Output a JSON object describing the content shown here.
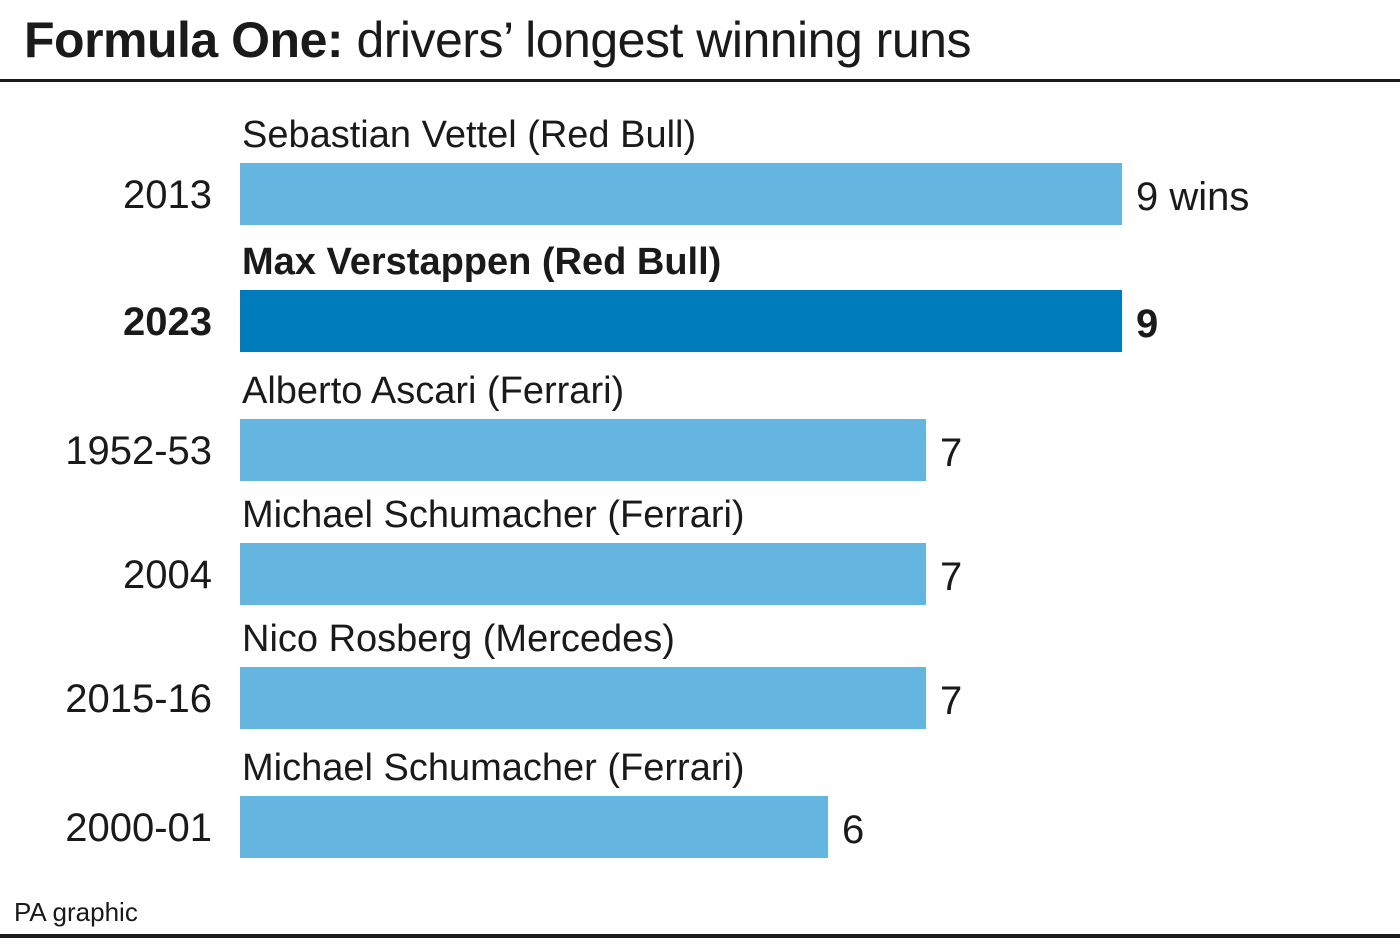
{
  "title": {
    "bold": "Formula One:",
    "light": "drivers’ longest winning runs"
  },
  "source": "PA graphic",
  "colors": {
    "bar": "#64B5E0",
    "highlight": "#007BBB",
    "text": "#1a1a1a"
  },
  "chart_data": {
    "type": "bar",
    "orientation": "horizontal",
    "categories": [
      "2013",
      "2023",
      "1952-53",
      "2004",
      "2015-16",
      "2000-01"
    ],
    "drivers": [
      "Sebastian Vettel (Red Bull)",
      "Max Verstappen (Red Bull)",
      "Alberto Ascari (Ferrari)",
      "Michael Schumacher (Ferrari)",
      "Nico Rosberg (Mercedes)",
      "Michael Schumacher (Ferrari)"
    ],
    "values": [
      9,
      9,
      7,
      7,
      7,
      6
    ],
    "value_labels": [
      "9 wins",
      "9",
      "7",
      "7",
      "7",
      "6"
    ],
    "highlight": [
      false,
      true,
      false,
      false,
      false,
      false
    ],
    "xlim": [
      0,
      9
    ],
    "grid": false,
    "legend": "none"
  }
}
